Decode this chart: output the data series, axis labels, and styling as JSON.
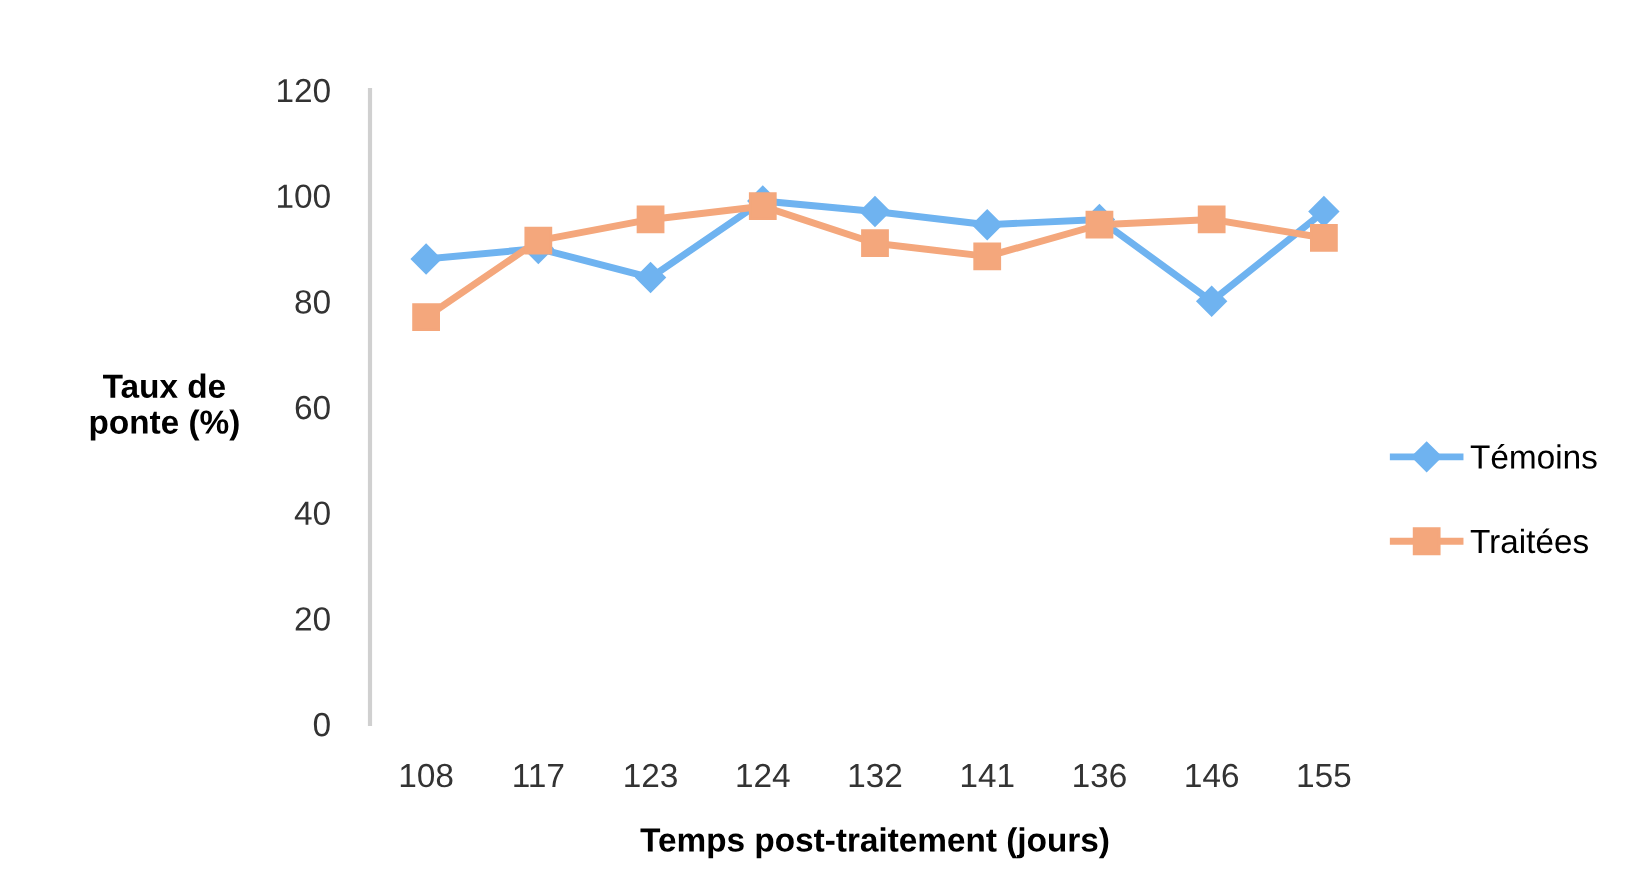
{
  "chart_data": {
    "type": "line",
    "xlabel": "Temps post-traitement (jours)",
    "ylabel": "Taux de\nponte (%)",
    "categories": [
      "108",
      "117",
      "123",
      "124",
      "132",
      "141",
      "136",
      "146",
      "155"
    ],
    "series": [
      {
        "name": "Témoins",
        "color": "#6fb3f0",
        "marker": "diamond",
        "values": [
          88,
          90,
          84.5,
          99,
          97,
          94.5,
          95.5,
          80,
          97
        ]
      },
      {
        "name": "Traitées",
        "color": "#f4a77c",
        "marker": "square",
        "values": [
          77,
          91.5,
          95.5,
          98,
          91,
          88.5,
          94.5,
          95.5,
          92
        ]
      }
    ],
    "ylim": [
      0,
      120
    ],
    "yticks": [
      0,
      20,
      40,
      60,
      80,
      100,
      120
    ],
    "grid": false,
    "legend": "right"
  }
}
